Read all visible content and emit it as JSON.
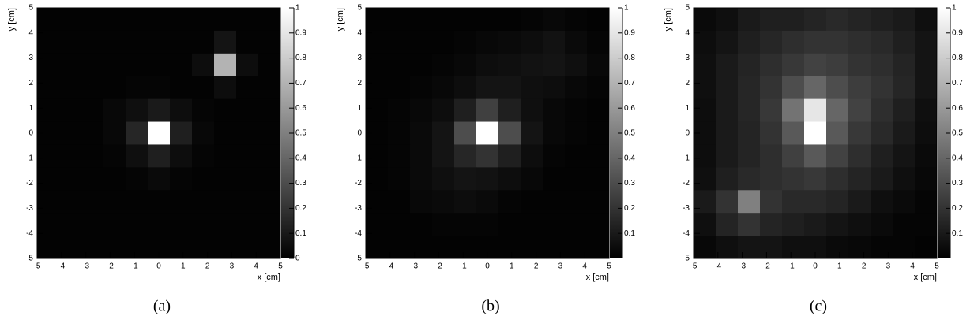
{
  "chart_data": [
    {
      "type": "heatmap",
      "caption": "(a)",
      "xlabel": "x [cm]",
      "ylabel": "y [cm]",
      "xlim": [
        -5,
        5
      ],
      "ylim": [
        -5,
        5
      ],
      "xticks": [
        -5,
        -4,
        -3,
        -2,
        -1,
        0,
        1,
        2,
        3,
        4,
        5
      ],
      "yticks": [
        -5,
        -4,
        -3,
        -2,
        -1,
        0,
        1,
        2,
        3,
        4,
        5
      ],
      "zlim": [
        0,
        1
      ],
      "zticks": [
        0,
        0.1,
        0.2,
        0.3,
        0.4,
        0.5,
        0.6,
        0.7,
        0.8,
        0.9,
        1
      ],
      "z": [
        [
          0.01,
          0.01,
          0.01,
          0.01,
          0.01,
          0.01,
          0.01,
          0.01,
          0.01,
          0.01,
          0.01
        ],
        [
          0.01,
          0.01,
          0.01,
          0.01,
          0.01,
          0.01,
          0.01,
          0.01,
          0.08,
          0.01,
          0.01
        ],
        [
          0.01,
          0.01,
          0.01,
          0.01,
          0.01,
          0.01,
          0.01,
          0.05,
          0.7,
          0.05,
          0.01
        ],
        [
          0.01,
          0.01,
          0.01,
          0.01,
          0.02,
          0.02,
          0.01,
          0.01,
          0.05,
          0.01,
          0.01
        ],
        [
          0.01,
          0.01,
          0.01,
          0.03,
          0.06,
          0.1,
          0.05,
          0.02,
          0.01,
          0.01,
          0.01
        ],
        [
          0.01,
          0.01,
          0.01,
          0.03,
          0.15,
          1,
          0.12,
          0.03,
          0.01,
          0.01,
          0.01
        ],
        [
          0.01,
          0.01,
          0.01,
          0.02,
          0.06,
          0.12,
          0.05,
          0.02,
          0.01,
          0.01,
          0.01
        ],
        [
          0.01,
          0.01,
          0.01,
          0.01,
          0.02,
          0.04,
          0.02,
          0.01,
          0.01,
          0.01,
          0.01
        ],
        [
          0.01,
          0.01,
          0.01,
          0.01,
          0.01,
          0.01,
          0.01,
          0.01,
          0.01,
          0.01,
          0.01
        ],
        [
          0.01,
          0.01,
          0.01,
          0.01,
          0.01,
          0.01,
          0.01,
          0.01,
          0.01,
          0.01,
          0.01
        ],
        [
          0.01,
          0.01,
          0.01,
          0.01,
          0.01,
          0.01,
          0.01,
          0.01,
          0.01,
          0.01,
          0.01
        ]
      ]
    },
    {
      "type": "heatmap",
      "caption": "(b)",
      "xlabel": "x [cm]",
      "ylabel": "y [cm]",
      "xlim": [
        -5,
        5
      ],
      "ylim": [
        -5,
        5
      ],
      "xticks": [
        -5,
        -4,
        -3,
        -2,
        -1,
        0,
        1,
        2,
        3,
        4,
        5
      ],
      "yticks": [
        -5,
        -4,
        -3,
        -2,
        -1,
        0,
        1,
        2,
        3,
        4,
        5
      ],
      "zlim": [
        0,
        1
      ],
      "zticks": [
        0.1,
        0.2,
        0.3,
        0.4,
        0.5,
        0.6,
        0.7,
        0.8,
        0.9,
        1
      ],
      "z": [
        [
          0.01,
          0.01,
          0.01,
          0.01,
          0.01,
          0.01,
          0.01,
          0.02,
          0.03,
          0.02,
          0.01
        ],
        [
          0.01,
          0.01,
          0.01,
          0.01,
          0.02,
          0.03,
          0.04,
          0.05,
          0.07,
          0.04,
          0.02
        ],
        [
          0.01,
          0.01,
          0.01,
          0.02,
          0.03,
          0.05,
          0.06,
          0.07,
          0.08,
          0.06,
          0.03
        ],
        [
          0.01,
          0.01,
          0.02,
          0.03,
          0.05,
          0.08,
          0.08,
          0.06,
          0.05,
          0.03,
          0.02
        ],
        [
          0.01,
          0.02,
          0.03,
          0.05,
          0.12,
          0.25,
          0.12,
          0.06,
          0.03,
          0.02,
          0.01
        ],
        [
          0.01,
          0.02,
          0.04,
          0.08,
          0.3,
          1,
          0.3,
          0.08,
          0.03,
          0.02,
          0.01
        ],
        [
          0.01,
          0.02,
          0.04,
          0.08,
          0.15,
          0.2,
          0.12,
          0.05,
          0.02,
          0.01,
          0.01
        ],
        [
          0.01,
          0.02,
          0.04,
          0.06,
          0.08,
          0.07,
          0.05,
          0.03,
          0.01,
          0.01,
          0.01
        ],
        [
          0.01,
          0.01,
          0.03,
          0.04,
          0.05,
          0.04,
          0.02,
          0.01,
          0.01,
          0.01,
          0.01
        ],
        [
          0.01,
          0.01,
          0.01,
          0.02,
          0.02,
          0.02,
          0.01,
          0.01,
          0.01,
          0.01,
          0.01
        ],
        [
          0.01,
          0.01,
          0.01,
          0.01,
          0.01,
          0.01,
          0.01,
          0.01,
          0.01,
          0.01,
          0.01
        ]
      ]
    },
    {
      "type": "heatmap",
      "caption": "(c)",
      "xlabel": "x [cm]",
      "ylabel": "y [cm]",
      "xlim": [
        -5,
        5
      ],
      "ylim": [
        -5,
        5
      ],
      "xticks": [
        -5,
        -4,
        -3,
        -2,
        -1,
        0,
        1,
        2,
        3,
        4,
        5
      ],
      "yticks": [
        -5,
        -4,
        -3,
        -2,
        -1,
        0,
        1,
        2,
        3,
        4,
        5
      ],
      "zlim": [
        0,
        1
      ],
      "zticks": [
        0.1,
        0.2,
        0.3,
        0.4,
        0.5,
        0.6,
        0.7,
        0.8,
        0.9,
        1
      ],
      "z": [
        [
          0.04,
          0.06,
          0.1,
          0.12,
          0.12,
          0.14,
          0.16,
          0.14,
          0.12,
          0.1,
          0.06
        ],
        [
          0.05,
          0.08,
          0.12,
          0.15,
          0.18,
          0.2,
          0.2,
          0.18,
          0.16,
          0.12,
          0.08
        ],
        [
          0.06,
          0.1,
          0.14,
          0.18,
          0.22,
          0.26,
          0.24,
          0.2,
          0.18,
          0.14,
          0.08
        ],
        [
          0.06,
          0.1,
          0.15,
          0.2,
          0.3,
          0.4,
          0.3,
          0.24,
          0.2,
          0.15,
          0.08
        ],
        [
          0.05,
          0.1,
          0.15,
          0.22,
          0.45,
          0.9,
          0.4,
          0.26,
          0.18,
          0.12,
          0.06
        ],
        [
          0.05,
          0.1,
          0.14,
          0.2,
          0.35,
          1,
          0.35,
          0.22,
          0.16,
          0.1,
          0.05
        ],
        [
          0.05,
          0.1,
          0.14,
          0.18,
          0.25,
          0.35,
          0.26,
          0.18,
          0.12,
          0.08,
          0.04
        ],
        [
          0.06,
          0.12,
          0.16,
          0.18,
          0.2,
          0.22,
          0.18,
          0.14,
          0.1,
          0.06,
          0.03
        ],
        [
          0.1,
          0.2,
          0.5,
          0.2,
          0.16,
          0.16,
          0.14,
          0.1,
          0.06,
          0.04,
          0.02
        ],
        [
          0.06,
          0.14,
          0.2,
          0.14,
          0.12,
          0.1,
          0.08,
          0.06,
          0.04,
          0.02,
          0.02
        ],
        [
          0.03,
          0.06,
          0.08,
          0.08,
          0.06,
          0.06,
          0.04,
          0.03,
          0.02,
          0.02,
          0.01
        ]
      ]
    }
  ]
}
